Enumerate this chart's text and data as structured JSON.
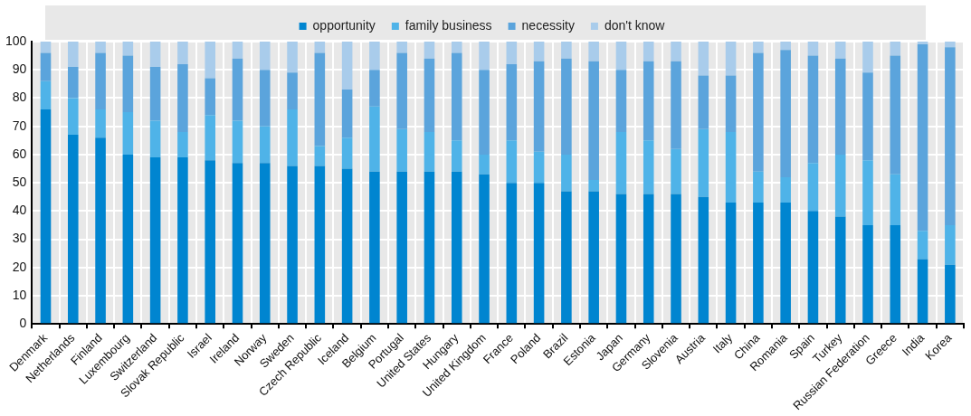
{
  "chart_data": {
    "type": "bar",
    "stacked": true,
    "categories": [
      "Denmark",
      "Netherlands",
      "Finland",
      "Luxembourg",
      "Switzerland",
      "Slovak Republic",
      "Israel",
      "Ireland",
      "Norway",
      "Sweden",
      "Czech Republic",
      "Iceland",
      "Belgium",
      "Portugal",
      "United States",
      "Hungary",
      "United Kingdom",
      "France",
      "Poland",
      "Brazil",
      "Estonia",
      "Japan",
      "Germany",
      "Slovenia",
      "Austria",
      "Italy",
      "China",
      "Romania",
      "Spain",
      "Turkey",
      "Russian Federation",
      "Greece",
      "India",
      "Korea"
    ],
    "series": [
      {
        "name": "opportunity",
        "color": "#0085d0",
        "values": [
          76,
          67,
          66,
          60,
          59,
          59,
          58,
          57,
          57,
          56,
          56,
          55,
          54,
          54,
          54,
          54,
          53,
          50,
          50,
          47,
          47,
          46,
          46,
          46,
          45,
          43,
          43,
          43,
          40,
          38,
          35,
          35,
          23,
          21
        ]
      },
      {
        "name": "family business",
        "color": "#4fb3e8",
        "values": [
          10,
          13,
          10,
          15,
          13,
          9,
          16,
          15,
          13,
          20,
          7,
          11,
          23,
          15,
          14,
          11,
          7,
          15,
          11,
          13,
          4,
          22,
          19,
          16,
          24,
          25,
          11,
          9,
          17,
          22,
          23,
          18,
          10,
          14
        ]
      },
      {
        "name": "necessity",
        "color": "#5ba4dc",
        "values": [
          10,
          11,
          20,
          20,
          19,
          24,
          13,
          22,
          20,
          13,
          33,
          17,
          13,
          27,
          26,
          31,
          30,
          27,
          32,
          34,
          42,
          22,
          28,
          31,
          19,
          20,
          42,
          45,
          38,
          34,
          31,
          42,
          66,
          63
        ]
      },
      {
        "name": "don't know",
        "color": "#a9cceb",
        "values": [
          4,
          9,
          4,
          5,
          9,
          8,
          13,
          6,
          10,
          11,
          4,
          17,
          10,
          4,
          6,
          4,
          10,
          8,
          7,
          6,
          7,
          10,
          7,
          7,
          12,
          12,
          4,
          3,
          5,
          6,
          11,
          5,
          1,
          2
        ]
      }
    ],
    "ylim": [
      0,
      100
    ],
    "yticks": [
      0,
      10,
      20,
      30,
      40,
      50,
      60,
      70,
      80,
      90,
      100
    ],
    "grid": true,
    "legend": "top"
  }
}
